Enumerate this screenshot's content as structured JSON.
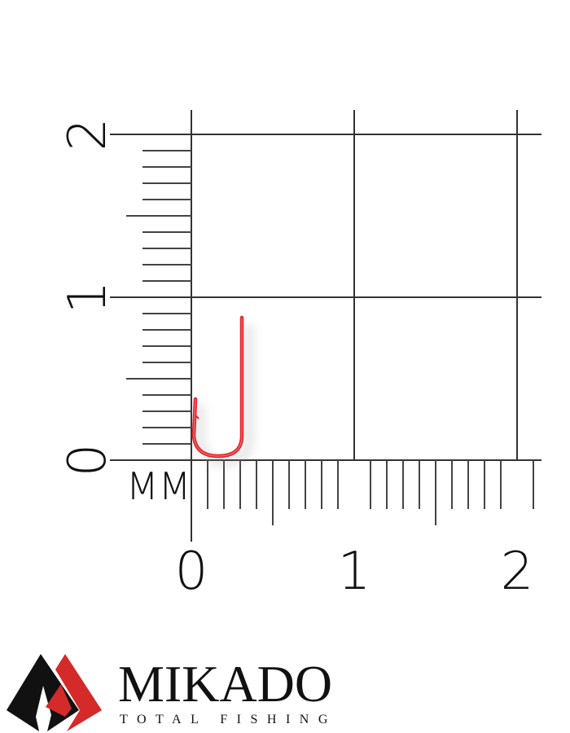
{
  "scale": {
    "unit_label": "MM",
    "x_labels": [
      "0",
      "1",
      "2"
    ],
    "y_labels": [
      "0",
      "1",
      "2"
    ],
    "range": [
      0,
      2
    ],
    "minor_step": 0.1
  },
  "product": {
    "name": "fishing hook",
    "color": "#e0242b"
  },
  "brand": {
    "name": "MIKADO",
    "tagline": "TOTAL FISHING",
    "colors": {
      "black": "#111111",
      "red": "#d42a2a"
    }
  }
}
